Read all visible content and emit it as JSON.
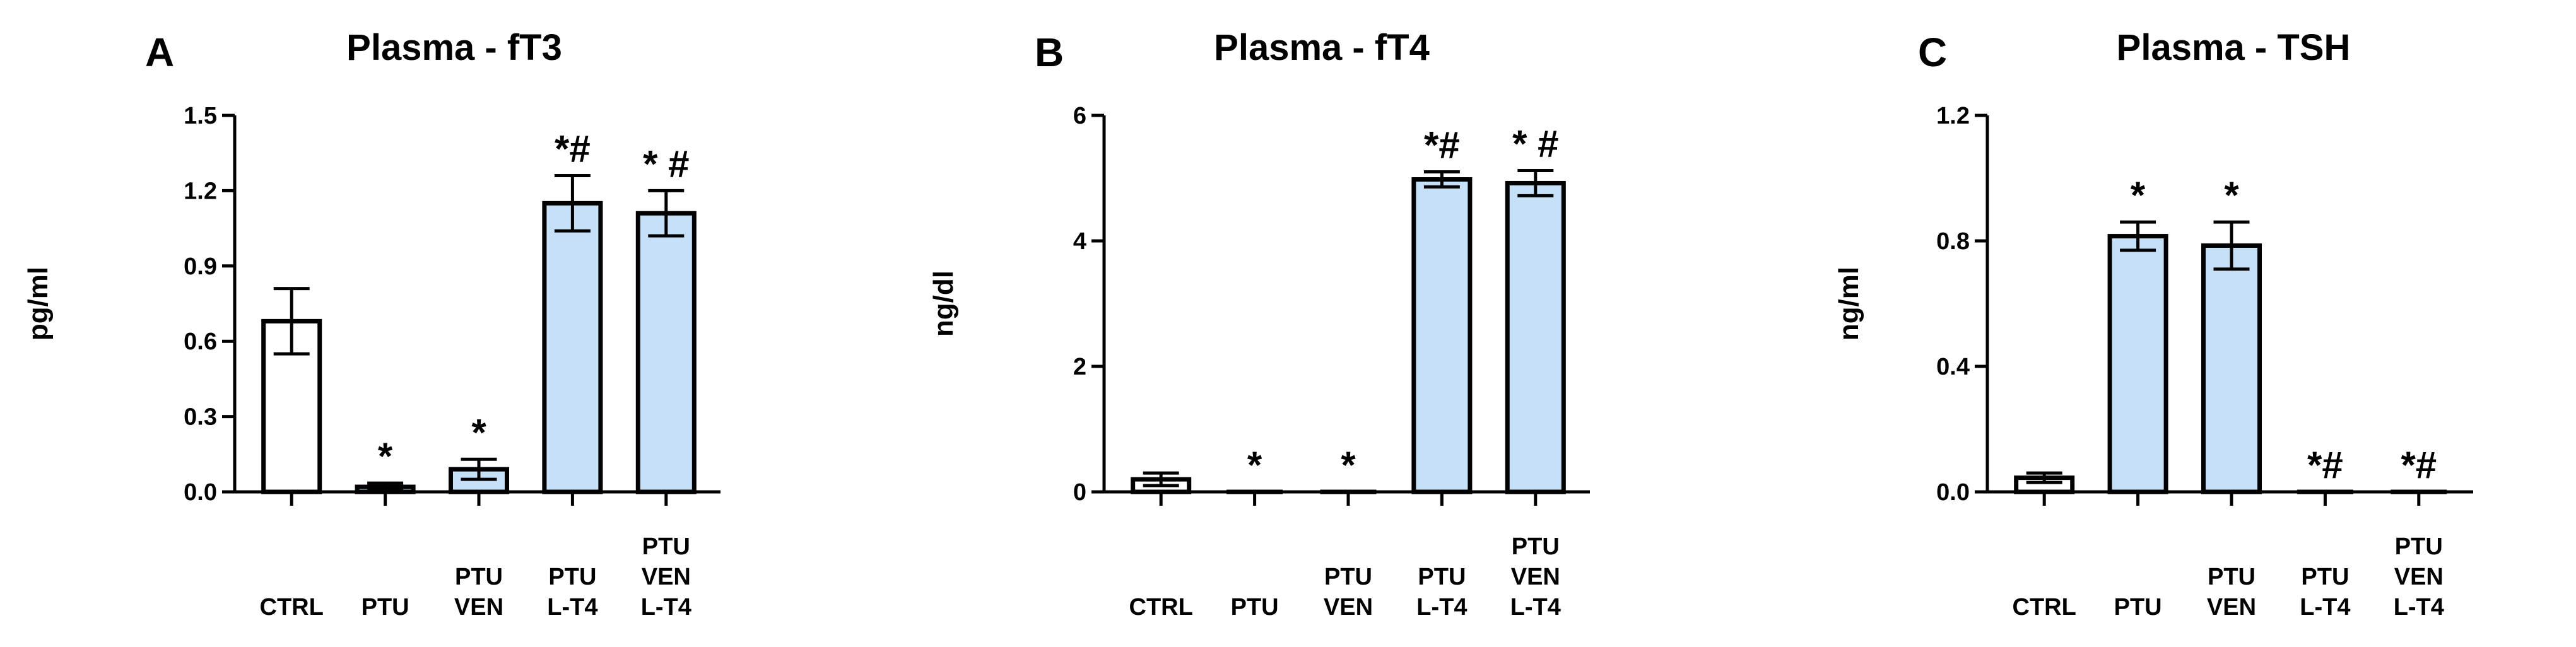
{
  "chart_data": [
    {
      "type": "bar",
      "panel_letter": "A",
      "title": "Plasma - fT3",
      "ylabel": "pg/ml",
      "xlabel": "",
      "ylim": [
        0,
        1.5
      ],
      "yticks": [
        "0.0",
        "0.3",
        "0.6",
        "0.9",
        "1.2",
        "1.5"
      ],
      "categories": [
        [
          "CTRL"
        ],
        [
          "PTU"
        ],
        [
          "PTU",
          "VEN"
        ],
        [
          "PTU",
          "L-T4"
        ],
        [
          "PTU",
          "VEN",
          "L-T4"
        ]
      ],
      "values": [
        0.68,
        0.02,
        0.09,
        1.15,
        1.11
      ],
      "errors": [
        0.13,
        0.015,
        0.04,
        0.11,
        0.09
      ],
      "significance": [
        "",
        "*",
        "*",
        "*#",
        "* #"
      ],
      "bar_fill": [
        "#ffffff",
        "#c5e0f7",
        "#c5e0f7",
        "#c5e0f7",
        "#c5e0f7"
      ]
    },
    {
      "type": "bar",
      "panel_letter": "B",
      "title": "Plasma - fT4",
      "ylabel": "ng/dl",
      "xlabel": "",
      "ylim": [
        0,
        6
      ],
      "yticks": [
        "0",
        "2",
        "4",
        "6"
      ],
      "categories": [
        [
          "CTRL"
        ],
        [
          "PTU"
        ],
        [
          "PTU",
          "VEN"
        ],
        [
          "PTU",
          "L-T4"
        ],
        [
          "PTU",
          "VEN",
          "L-T4"
        ]
      ],
      "values": [
        0.2,
        0.0,
        0.0,
        4.98,
        4.92
      ],
      "errors": [
        0.1,
        0.0,
        0.0,
        0.12,
        0.2
      ],
      "significance": [
        "",
        "*",
        "*",
        "*#",
        "* #"
      ],
      "bar_fill": [
        "#ffffff",
        "#c5e0f7",
        "#c5e0f7",
        "#c5e0f7",
        "#c5e0f7"
      ]
    },
    {
      "type": "bar",
      "panel_letter": "C",
      "title": "Plasma - TSH",
      "ylabel": "ng/ml",
      "xlabel": "",
      "ylim": [
        0,
        1.2
      ],
      "yticks": [
        "0.0",
        "0.4",
        "0.8",
        "1.2"
      ],
      "categories": [
        [
          "CTRL"
        ],
        [
          "PTU"
        ],
        [
          "PTU",
          "VEN"
        ],
        [
          "PTU",
          "L-T4"
        ],
        [
          "PTU",
          "VEN",
          "L-T4"
        ]
      ],
      "values": [
        0.045,
        0.815,
        0.785,
        0.0,
        0.0
      ],
      "errors": [
        0.015,
        0.045,
        0.075,
        0.0,
        0.0
      ],
      "significance": [
        "",
        "*",
        "*",
        "*#",
        "*#"
      ],
      "bar_fill": [
        "#ffffff",
        "#c5e0f7",
        "#c5e0f7",
        "#c5e0f7",
        "#c5e0f7"
      ]
    }
  ]
}
